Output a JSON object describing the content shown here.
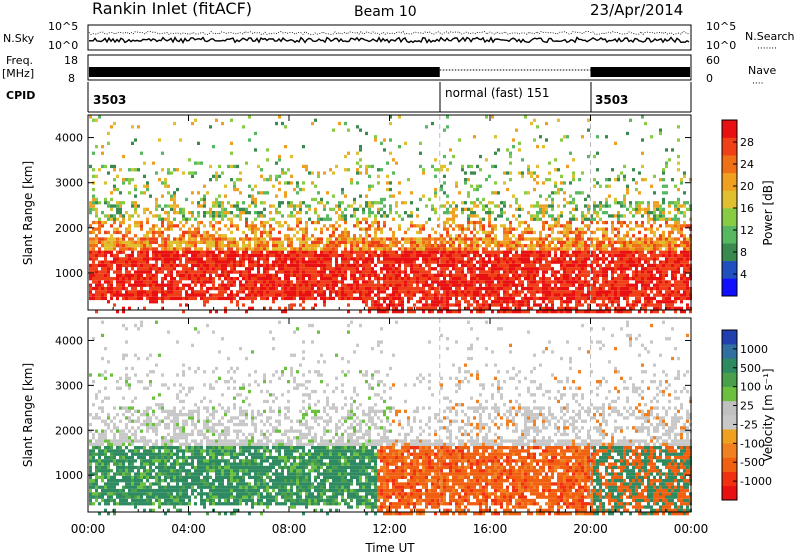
{
  "header": {
    "station": "Rankin Inlet (fitACF)",
    "beam": "Beam 10",
    "date": "23/Apr/2014"
  },
  "panels": {
    "nsky_label": "N.Sky",
    "nsearch_label": "N.Search",
    "nsearch_dots": "·······",
    "nsky_ticks": [
      "10^5",
      "10^0"
    ],
    "nsearch_ticks": [
      "10^5",
      "10^0"
    ],
    "freq_label": "Freq.",
    "freq_unit": "[MHz]",
    "freq_ticks": [
      "18",
      "8"
    ],
    "nave_label": "Nave",
    "nave_dots": "····",
    "nave_ticks": [
      "60",
      "0"
    ],
    "cpid_label": "CPID",
    "cpid_segments": [
      {
        "label": "3503",
        "start_hour": 0,
        "end_hour": 14
      },
      {
        "label": "normal (fast) 151",
        "start_hour": 14,
        "end_hour": 20
      },
      {
        "label": "3503",
        "start_hour": 20,
        "end_hour": 24
      }
    ]
  },
  "chart_data": [
    {
      "type": "heatmap",
      "name": "power",
      "ylabel": "Slant Range [km]",
      "yticks": [
        1000,
        2000,
        3000,
        4000
      ],
      "ylim": [
        180,
        4500
      ],
      "xlim": [
        0,
        24
      ],
      "colorbar_label": "Power [dB]",
      "colorbar_ticks": [
        "4",
        "8",
        "12",
        "16",
        "20",
        "24",
        "28"
      ],
      "colorbar_colors": [
        "#1010ff",
        "#2050c0",
        "#3a8a50",
        "#56b860",
        "#88cc44",
        "#e0c030",
        "#f0a020",
        "#f07018",
        "#f04018",
        "#e81010"
      ]
    },
    {
      "type": "heatmap",
      "name": "velocity",
      "ylabel": "Slant Range [km]",
      "yticks": [
        1000,
        2000,
        3000,
        4000
      ],
      "ylim": [
        180,
        4500
      ],
      "xlim": [
        0,
        24
      ],
      "colorbar_label": "Velocity [m s⁻¹]",
      "colorbar_ticks": [
        "1000",
        "500",
        "100",
        "25",
        "-25",
        "-100",
        "-500",
        "-1000"
      ],
      "colorbar_colors": [
        "#2040b0",
        "#3070a0",
        "#2e8a60",
        "#4aa04a",
        "#6cc040",
        "#c0c0c0",
        "#c8c8c8",
        "#f0a020",
        "#f08020",
        "#f06010",
        "#f03010",
        "#e81010"
      ]
    }
  ],
  "xaxis": {
    "ticks": [
      "00:00",
      "04:00",
      "08:00",
      "12:00",
      "16:00",
      "20:00",
      "00:00"
    ],
    "label": "Time UT"
  }
}
